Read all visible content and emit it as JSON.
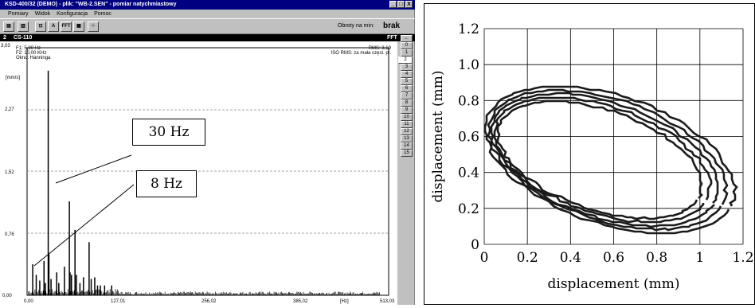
{
  "app": {
    "title": "KSD-400/32 (DEMO) - plik: \"WB-2.SEN\" - pomiar natychmiastowy",
    "window_buttons": [
      "_",
      "□",
      "X"
    ],
    "menu": [
      "Pomiary",
      "Widok",
      "Konfiguracja",
      "Pomoc"
    ],
    "toolbar_icons": [
      "chart-icon",
      "save-icon",
      "filter-icon",
      "text-icon",
      "fft-icon",
      "export-icon",
      "settings-icon"
    ],
    "toolbar_labels": {
      "text": "A",
      "fft": "FFT"
    },
    "rpm_label": "Obroty na min:",
    "rpm_value": "brak"
  },
  "subbar": {
    "channel": "2",
    "sensor": "CS-110",
    "mode": "FFT"
  },
  "spectrum": {
    "info": {
      "f1": "F1: 5,00 Hz",
      "f2": "F2: 10,00 KHz",
      "window": "Okno: Hanninga",
      "rms": "RMS: 3,19",
      "iso": "ISO RMS: za mała częst. pr."
    },
    "unit": "[mm/s]",
    "ymax_label": "3,03",
    "yticks": [
      "2,27",
      "1,52",
      "0,76",
      "0,00"
    ],
    "xticks": [
      "0,00",
      "127,01",
      "256,02",
      "385,02",
      "513,03"
    ],
    "xunit": "[Hz]",
    "tabs": [
      "←",
      "0",
      "1",
      "2",
      "3",
      "4",
      "5",
      "6",
      "7",
      "8",
      "9",
      "10",
      "11",
      "12",
      "13",
      "14",
      "15"
    ],
    "active_tab": "2",
    "callouts": {
      "c30": "30 Hz",
      "c8": "8 Hz"
    }
  },
  "chart_data": [
    {
      "type": "bar",
      "xlabel": "[Hz]",
      "ylabel": "[mm/s]",
      "ylim": [
        0,
        3.03
      ],
      "xlim": [
        0,
        513.03
      ],
      "grid": "horizontal dashed",
      "x": [
        8,
        13,
        18,
        24,
        26,
        30,
        31,
        34,
        42,
        45,
        53,
        60,
        61,
        63,
        68,
        70,
        75,
        80,
        88,
        91,
        96,
        100,
        104,
        110,
        120
      ],
      "values": [
        0.38,
        0.25,
        0.18,
        0.42,
        0.15,
        2.75,
        0.5,
        0.2,
        0.28,
        0.15,
        0.35,
        1.15,
        0.28,
        0.25,
        0.8,
        0.25,
        0.15,
        0.22,
        0.65,
        0.2,
        0.22,
        0.12,
        0.12,
        0.12,
        0.12
      ],
      "annotations": [
        "30 Hz",
        "8 Hz"
      ]
    },
    {
      "type": "line",
      "xlabel": "displacement (mm)",
      "ylabel": "displacement (mm)",
      "xlim": [
        0,
        1.2
      ],
      "ylim": [
        0,
        1.2
      ],
      "xticks": [
        "0",
        "0.2",
        "0.4",
        "0.6",
        "0.8",
        "1",
        "1.2"
      ],
      "yticks": [
        "0",
        "0.2",
        "0.4",
        "0.6",
        "0.8",
        "1.0",
        "1.2"
      ],
      "grid": true,
      "orbit": {
        "center": [
          0.56,
          0.47
        ],
        "semi_axes": [
          0.56,
          0.32
        ],
        "tilt_deg": -25,
        "loops": 5
      }
    }
  ]
}
